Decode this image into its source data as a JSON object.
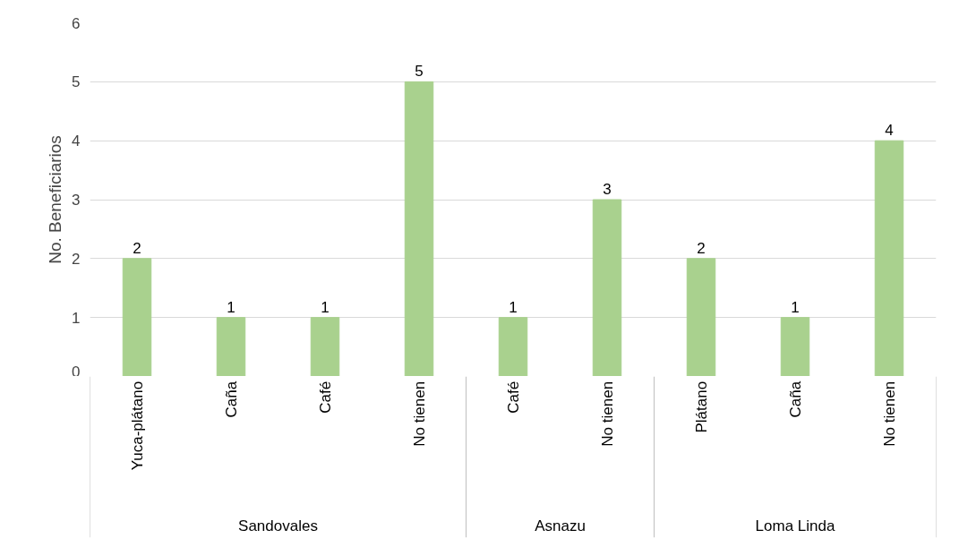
{
  "chart_data": {
    "type": "bar",
    "ylabel": "No. Beneficiarios",
    "categories": [
      "Yuca-plátano",
      "Caña",
      "Café",
      "No tienen",
      "Café",
      "No tienen",
      "Plátano",
      "Caña",
      "No tienen"
    ],
    "values": [
      2,
      1,
      1,
      5,
      1,
      3,
      2,
      1,
      4
    ],
    "color": "#a9d18e",
    "ylim": [
      0,
      6
    ],
    "yticks": [
      0,
      1,
      2,
      3,
      4,
      5,
      6
    ],
    "grid": "y",
    "data_labels": true,
    "annotations": [
      "Sandovales",
      "Asnazu",
      "Loma Linda"
    ]
  }
}
